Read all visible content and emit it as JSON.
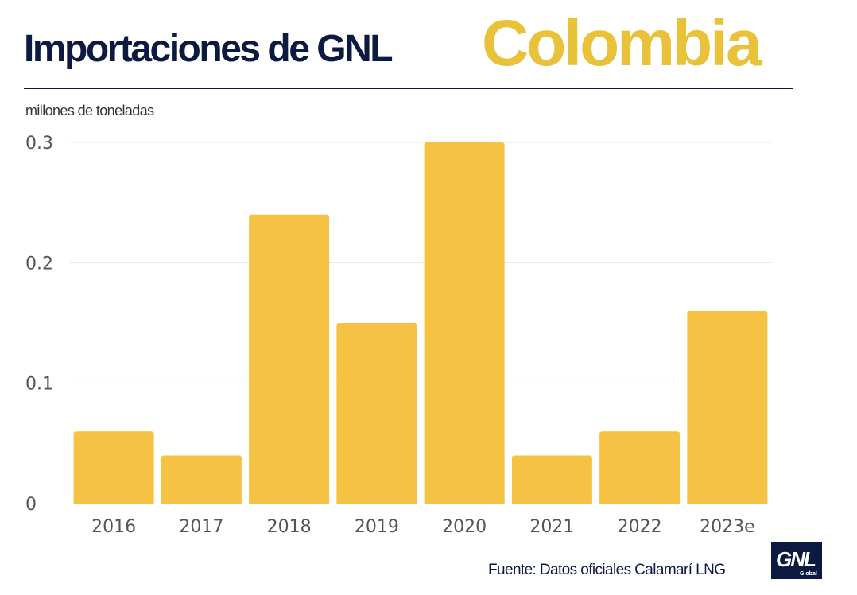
{
  "header": {
    "title": "Importaciones de GNL",
    "country": "Colombia",
    "unit_label": "millones de toneladas"
  },
  "footer": {
    "source": "Fuente: Datos  oficiales Calamarí LNG",
    "logo_text": "GNL",
    "logo_subtext": "Global"
  },
  "colors": {
    "bar": "#f5c244",
    "title": "#0c1a42",
    "accent": "#e9c239",
    "grid": "#e6e6e6",
    "tick": "#555555"
  },
  "chart_data": {
    "type": "bar",
    "categories": [
      "2016",
      "2017",
      "2018",
      "2019",
      "2020",
      "2021",
      "2022",
      "2023e"
    ],
    "values": [
      0.06,
      0.04,
      0.24,
      0.15,
      0.3,
      0.04,
      0.06,
      0.16
    ],
    "ylabel": "millones de toneladas",
    "ylim": [
      0,
      0.3
    ],
    "yticks": [
      0,
      0.1,
      0.2,
      0.3
    ],
    "ytick_labels": [
      "0",
      "0.1",
      "0.2",
      "0.3"
    ],
    "grid": true
  }
}
